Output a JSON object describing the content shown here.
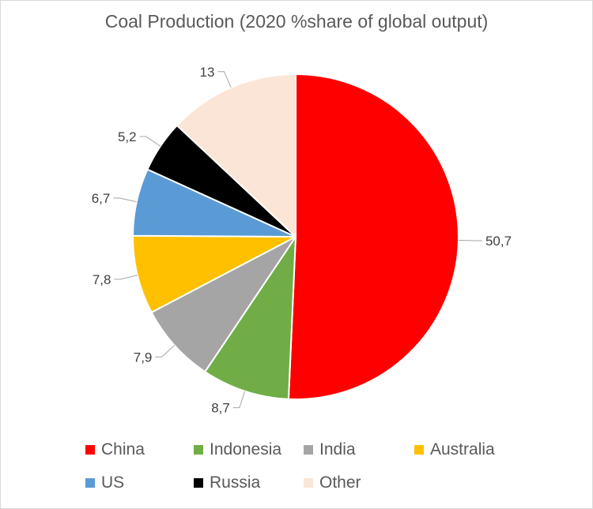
{
  "chart_data": {
    "type": "pie",
    "title": "Coal Production (2020 %share of global output)",
    "categories": [
      "China",
      "Indonesia",
      "India",
      "Australia",
      "US",
      "Russia",
      "Other"
    ],
    "values": [
      50.7,
      8.7,
      7.9,
      7.8,
      6.7,
      5.2,
      13
    ],
    "data_labels": [
      "50,7",
      "8,7",
      "7,9",
      "7,8",
      "6,7",
      "5,2",
      "13"
    ],
    "colors": [
      "#ff0000",
      "#70ad47",
      "#a5a5a5",
      "#ffc000",
      "#5b9bd5",
      "#000000",
      "#fbe5d6"
    ],
    "legend_position": "bottom"
  }
}
